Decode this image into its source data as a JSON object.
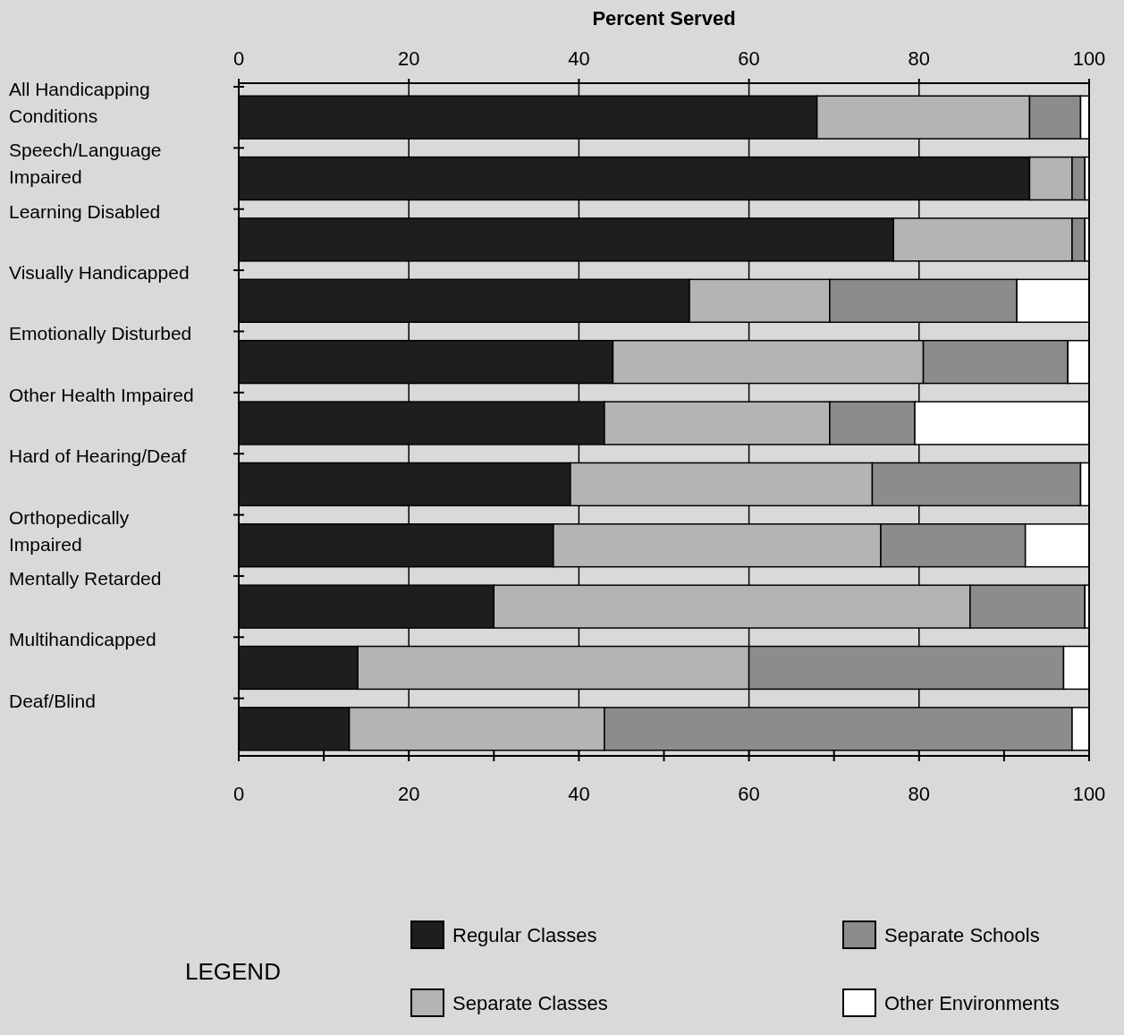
{
  "chart_data": {
    "type": "bar",
    "orientation": "horizontal",
    "stacked": true,
    "x2label": "Percent Served",
    "legend_title": "LEGEND",
    "legend": "bottom",
    "grid": "x",
    "categories": [
      "All Handicapping Conditions",
      "Speech/Language Impaired",
      "Learning Disabled",
      "Visually Handicapped",
      "Emotionally Disturbed",
      "Other Health Impaired",
      "Hard of Hearing/Deaf",
      "Orthopedically Impaired",
      "Mentally Retarded",
      "Multihandicapped",
      "Deaf/Blind"
    ],
    "xlim": [
      0,
      100
    ],
    "xticks": [
      0,
      {
        "value": 10,
        "label": null
      },
      20,
      {
        "value": 30,
        "label": null
      },
      40,
      {
        "value": 50,
        "label": null
      },
      60,
      {
        "value": 70,
        "label": null
      },
      80,
      {
        "value": 90,
        "label": null
      },
      100
    ],
    "x2lim": [
      0,
      100
    ],
    "x2ticks": [
      0,
      20,
      40,
      60,
      80,
      100
    ],
    "series": [
      {
        "name": "Regular Classes",
        "color": "#1e1e1e",
        "values": [
          68,
          93,
          77,
          53,
          44,
          43,
          39,
          37,
          30,
          14,
          13
        ]
      },
      {
        "name": "Separate Classes",
        "color": "#b4b4b4",
        "values": [
          25,
          5,
          21,
          16.5,
          36.5,
          26.5,
          35.5,
          38.5,
          56,
          46,
          30
        ]
      },
      {
        "name": "Separate Schools",
        "color": "#8c8c8c",
        "values": [
          6,
          1.5,
          1.5,
          22,
          17,
          10,
          24.5,
          17,
          13.5,
          37,
          55
        ]
      },
      {
        "name": "Other Environments",
        "color": "#ffffff",
        "values": [
          1,
          0.5,
          0.5,
          8.5,
          2.5,
          20.5,
          1,
          7.5,
          0.5,
          3,
          2
        ]
      }
    ]
  }
}
